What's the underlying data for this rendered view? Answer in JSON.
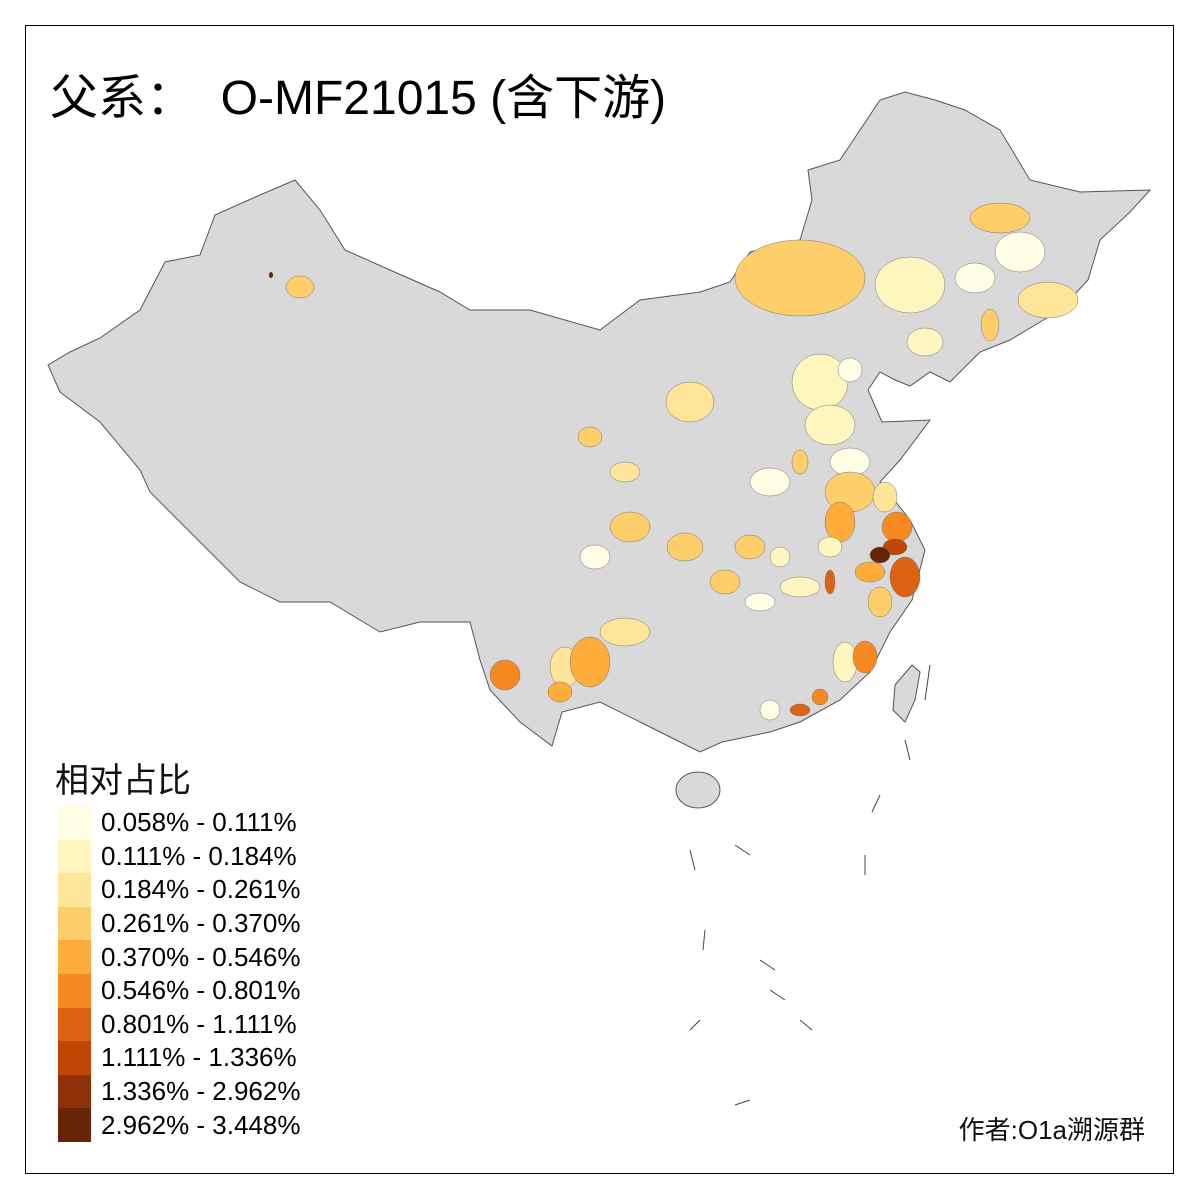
{
  "title": "父系：  O-MF21015 (含下游)",
  "map": {
    "base_color": "#d9d9d9",
    "border_color": "#555555"
  },
  "legend": {
    "title": "相对占比",
    "items": [
      {
        "label": "0.058% - 0.111%",
        "color": "#fffde4"
      },
      {
        "label": "0.111% - 0.184%",
        "color": "#fff6bf"
      },
      {
        "label": "0.184% - 0.261%",
        "color": "#fee59a"
      },
      {
        "label": "0.261% - 0.370%",
        "color": "#fece6a"
      },
      {
        "label": "0.370% - 0.546%",
        "color": "#fdad3c"
      },
      {
        "label": "0.546% - 0.801%",
        "color": "#f58922"
      },
      {
        "label": "0.801% - 1.111%",
        "color": "#de6214"
      },
      {
        "label": "1.111% - 1.336%",
        "color": "#bf4605"
      },
      {
        "label": "1.336% - 2.962%",
        "color": "#8f3108"
      },
      {
        "label": "2.962% - 3.448%",
        "color": "#662506"
      }
    ]
  },
  "credit": "作者:O1a溯源群"
}
